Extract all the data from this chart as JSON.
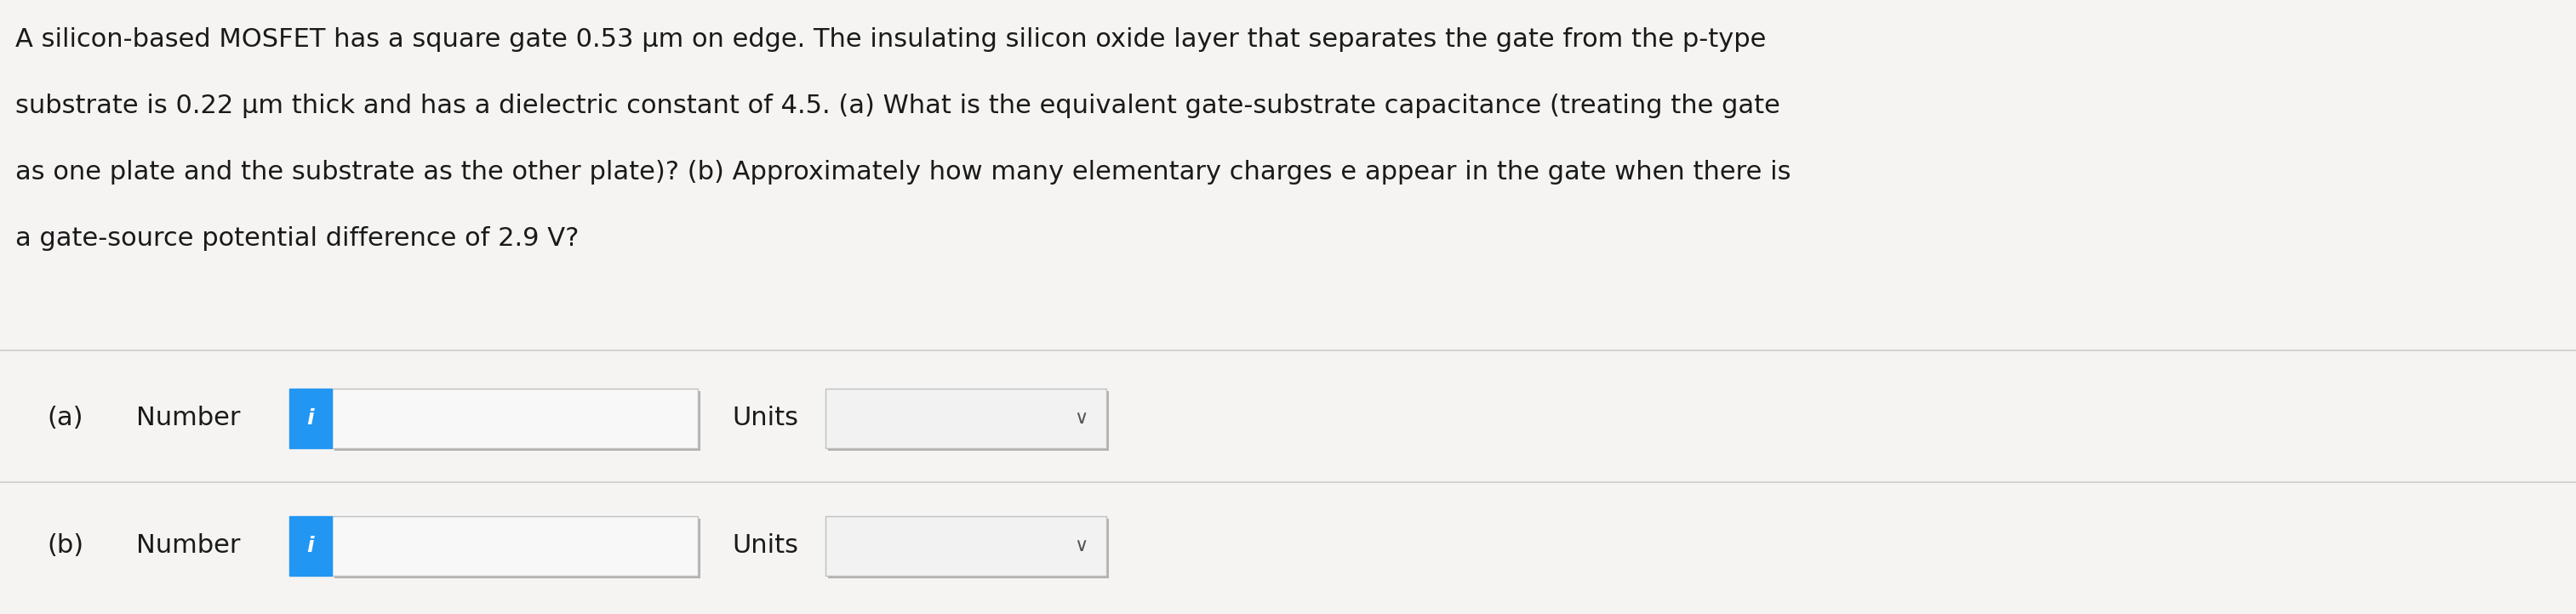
{
  "background_color": "#e8e8e8",
  "text_area_color": "#f5f4f2",
  "text_block_line1": "A silicon-based MOSFET has a square gate 0.53 μm on edge. The insulating silicon oxide layer that separates the gate from the p-type",
  "text_block_line2": "substrate is 0.22 μm thick and has a dielectric constant of 4.5. (a) What is the equivalent gate-substrate capacitance (treating the gate",
  "text_block_line3": "as one plate and the substrate as the other plate)? (b) Approximately how many elementary charges e appear in the gate when there is",
  "text_block_line4": "a gate-source potential difference of 2.9 V?",
  "label_a": "(a)",
  "label_b": "(b)",
  "number_label": "Number",
  "units_label": "Units",
  "info_button_color": "#2196f3",
  "info_button_text": "i",
  "input_box_color": "#f8f8f8",
  "input_box_border": "#c0c0c0",
  "units_box_color": "#f2f2f2",
  "units_box_border": "#c0c0c0",
  "text_color": "#1a1a1a",
  "divider_color": "#cccccc",
  "font_size_main_text": 22,
  "font_size_labels": 22,
  "font_size_info": 18
}
